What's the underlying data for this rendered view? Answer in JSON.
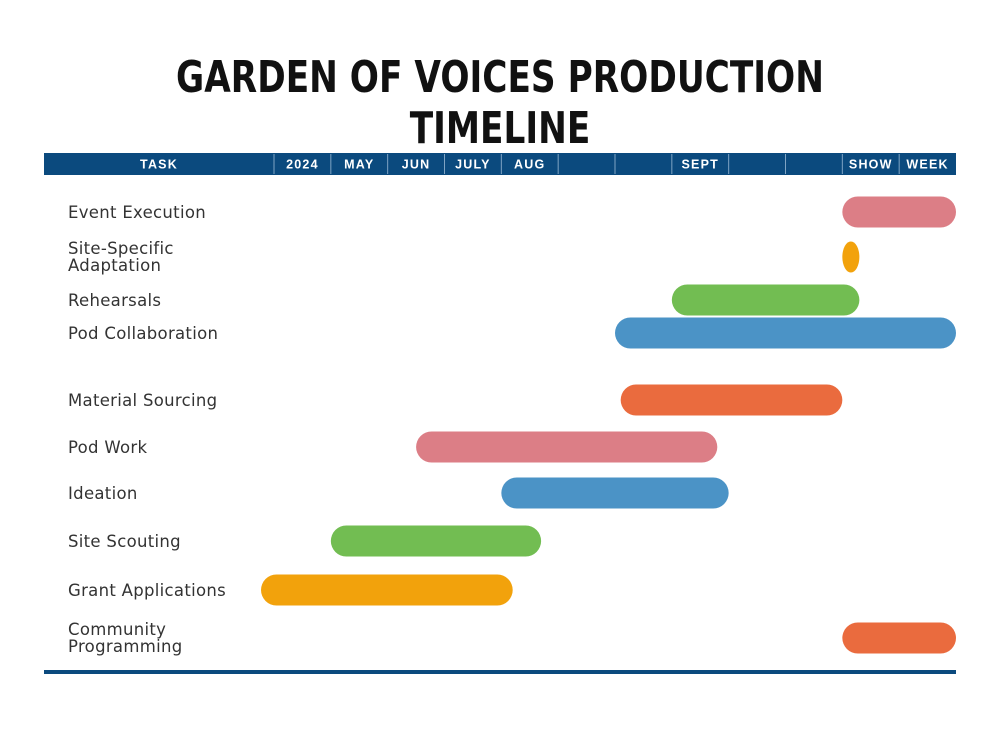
{
  "title": "GARDEN OF VOICES PRODUCTION TIMELINE",
  "chart_data": {
    "type": "gantt",
    "header": {
      "task_label": "TASK",
      "columns": [
        "2024",
        "MAY",
        "JUN",
        "JULY",
        "AUG",
        "",
        "",
        "SEPT",
        "",
        "",
        "SHOW",
        "WEEK"
      ]
    },
    "colors": {
      "header_bg": "#0b4a7e",
      "pink": "#dc7e86",
      "orange": "#f2a20c",
      "green": "#72bd52",
      "blue": "#4b93c6",
      "red_orange": "#ea6b3e"
    },
    "tasks": [
      {
        "label": "Event Execution",
        "start": 10.0,
        "end": 12.0,
        "color": "#dc7e86"
      },
      {
        "label": "Site-Specific\nAdaptation",
        "start": 10.0,
        "end": 10.3,
        "color": "#f2a20c"
      },
      {
        "label": "Rehearsals",
        "start": 7.0,
        "end": 10.3,
        "color": "#72bd52"
      },
      {
        "label": "Pod Collaboration",
        "start": 6.0,
        "end": 12.0,
        "color": "#4b93c6"
      },
      {
        "label": "Material Sourcing",
        "start": 6.1,
        "end": 10.0,
        "color": "#ea6b3e"
      },
      {
        "label": "Pod Work",
        "start": 2.5,
        "end": 7.8,
        "color": "#dc7e86"
      },
      {
        "label": "Ideation",
        "start": 4.0,
        "end": 8.0,
        "color": "#4b93c6"
      },
      {
        "label": "Site Scouting",
        "start": 1.0,
        "end": 4.7,
        "color": "#72bd52"
      },
      {
        "label": "Grant Applications",
        "start": 0.0,
        "end": 4.2,
        "color": "#f2a20c"
      },
      {
        "label": "Community\nProgramming",
        "start": 10.0,
        "end": 12.0,
        "color": "#ea6b3e"
      }
    ]
  }
}
